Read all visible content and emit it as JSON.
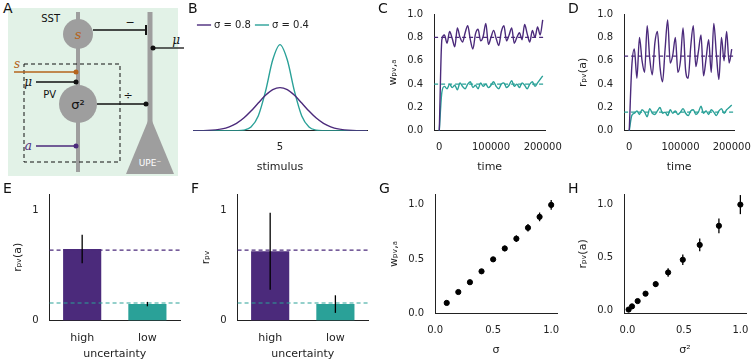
{
  "diagram": {
    "panel": "A",
    "nodes": [
      {
        "name": "SST",
        "content": "s",
        "color": "#b5651d"
      },
      {
        "name": "PV",
        "content": "σ²"
      },
      {
        "name": "UPE⁻"
      }
    ],
    "inputs": [
      {
        "label": "μ",
        "target": "UPE⁻",
        "color": "#111111"
      },
      {
        "label": "s",
        "target": "PV",
        "color": "#b5651d"
      },
      {
        "label": "μ",
        "target": "PV",
        "color": "#111111"
      },
      {
        "label": "a",
        "target": "PV",
        "color": "#4b2a7b"
      }
    ],
    "synapses": [
      {
        "from": "SST",
        "to": "UPE⁻",
        "label": "−"
      },
      {
        "from": "PV",
        "to": "UPE⁻",
        "label": "÷"
      }
    ]
  },
  "chart_data": [
    {
      "panel": "B",
      "type": "line",
      "xlabel": "stimulus",
      "grid": false,
      "legend": "upper left",
      "tick_labels": "x",
      "x": [
        2,
        2.5,
        3,
        3.25,
        3.5,
        3.75,
        4,
        4.25,
        4.5,
        4.75,
        5,
        5.25,
        5.5,
        5.75,
        6,
        6.25,
        6.5,
        6.75,
        7,
        7.5,
        8
      ],
      "xlim": [
        2,
        8
      ],
      "xticks": [
        5
      ],
      "ylim": [
        0,
        1.05
      ],
      "series": [
        {
          "name": "σ = 0.8",
          "color": "#4b2a7b",
          "values": [
            0.0004,
            0.0038,
            0.022,
            0.046,
            0.086,
            0.147,
            0.228,
            0.321,
            0.41,
            0.475,
            0.499,
            0.475,
            0.41,
            0.321,
            0.228,
            0.147,
            0.086,
            0.046,
            0.022,
            0.0038,
            0.0004
          ]
        },
        {
          "name": "σ = 0.4",
          "color": "#2aa198",
          "values": [
            0,
            0,
            0,
            0,
            0.0009,
            0.0076,
            0.044,
            0.172,
            0.456,
            0.821,
            0.997,
            0.821,
            0.456,
            0.172,
            0.044,
            0.0076,
            0.0009,
            0,
            0,
            0,
            0
          ]
        }
      ]
    },
    {
      "panel": "C",
      "type": "line",
      "xlabel": "time",
      "ylabel": "wₚᵥ,ₐ",
      "grid": false,
      "x": [
        0,
        5000,
        10000,
        15000,
        20000,
        25000,
        30000,
        35000,
        40000,
        45000,
        50000,
        55000,
        60000,
        65000,
        70000,
        75000,
        80000,
        85000,
        90000,
        95000,
        100000,
        105000,
        110000,
        115000,
        120000,
        125000,
        130000,
        135000,
        140000,
        145000,
        150000,
        155000,
        160000,
        165000,
        170000,
        175000,
        180000,
        185000,
        190000,
        195000,
        200000
      ],
      "xlim": [
        -10000,
        205000
      ],
      "xticks": [
        0,
        100000,
        200000
      ],
      "ylim": [
        0,
        1
      ],
      "yticks": [
        {
          "value": 0,
          "label": "0.0"
        },
        {
          "value": 0.2,
          "label": "0.2"
        },
        {
          "value": 0.4,
          "label": "0.4"
        },
        {
          "value": 0.6,
          "label": "0.6"
        },
        {
          "value": 0.8,
          "label": "0.8"
        },
        {
          "value": 1,
          "label": "1.0"
        }
      ],
      "series": [
        {
          "color": "#4b2a7b",
          "values": [
            0.0,
            0.78,
            0.82,
            0.75,
            0.85,
            0.79,
            0.72,
            0.88,
            0.8,
            0.76,
            0.84,
            0.9,
            0.78,
            0.7,
            0.83,
            0.87,
            0.77,
            0.81,
            0.92,
            0.74,
            0.8,
            0.86,
            0.79,
            0.73,
            0.85,
            0.9,
            0.77,
            0.82,
            0.88,
            0.75,
            0.8,
            0.84,
            0.78,
            0.91,
            0.83,
            0.76,
            0.86,
            0.8,
            0.89,
            0.82,
            0.95
          ]
        },
        {
          "color": "#2aa198",
          "values": [
            0,
            0.33,
            0.38,
            0.36,
            0.4,
            0.37,
            0.39,
            0.35,
            0.41,
            0.38,
            0.36,
            0.4,
            0.42,
            0.37,
            0.39,
            0.36,
            0.41,
            0.38,
            0.4,
            0.37,
            0.39,
            0.42,
            0.38,
            0.36,
            0.4,
            0.41,
            0.37,
            0.39,
            0.43,
            0.38,
            0.4,
            0.37,
            0.41,
            0.39,
            0.36,
            0.4,
            0.42,
            0.38,
            0.41,
            0.44,
            0.47
          ]
        }
      ],
      "reference_lines": [
        {
          "value": 0.8,
          "color": "#4b2a7b",
          "line_style": "dashed"
        },
        {
          "value": 0.4,
          "color": "#2aa198",
          "line_style": "dashed"
        }
      ]
    },
    {
      "panel": "D",
      "type": "line",
      "xlabel": "time",
      "ylabel": "rₚᵥ(a)",
      "grid": false,
      "x": [
        0,
        5000,
        10000,
        15000,
        20000,
        25000,
        30000,
        35000,
        40000,
        45000,
        50000,
        55000,
        60000,
        65000,
        70000,
        75000,
        80000,
        85000,
        90000,
        95000,
        100000,
        105000,
        110000,
        115000,
        120000,
        125000,
        130000,
        135000,
        140000,
        145000,
        150000,
        155000,
        160000,
        165000,
        170000,
        175000,
        180000,
        185000,
        190000,
        195000,
        200000
      ],
      "xlim": [
        -10000,
        205000
      ],
      "xticks": [
        0,
        100000,
        200000
      ],
      "ylim": [
        0,
        1
      ],
      "yticks": [
        {
          "value": 0,
          "label": "0.0"
        },
        {
          "value": 0.2,
          "label": "0.2"
        },
        {
          "value": 0.4,
          "label": "0.4"
        },
        {
          "value": 0.6,
          "label": "0.6"
        },
        {
          "value": 0.8,
          "label": "0.8"
        },
        {
          "value": 1,
          "label": "1.0"
        }
      ],
      "series": [
        {
          "color": "#4b2a7b",
          "values": [
            0,
            0.55,
            0.7,
            0.45,
            0.8,
            0.6,
            0.5,
            0.9,
            0.62,
            0.48,
            0.75,
            0.85,
            0.55,
            0.42,
            0.7,
            0.95,
            0.58,
            0.65,
            0.8,
            0.5,
            0.6,
            0.88,
            0.52,
            0.45,
            0.72,
            0.9,
            0.55,
            0.68,
            0.82,
            0.47,
            0.62,
            0.78,
            0.5,
            0.92,
            0.66,
            0.44,
            0.8,
            0.6,
            0.85,
            0.58,
            0.7
          ]
        },
        {
          "color": "#2aa198",
          "values": [
            0,
            0.13,
            0.15,
            0.17,
            0.14,
            0.18,
            0.16,
            0.12,
            0.19,
            0.15,
            0.14,
            0.17,
            0.2,
            0.15,
            0.16,
            0.13,
            0.18,
            0.15,
            0.17,
            0.14,
            0.16,
            0.19,
            0.15,
            0.13,
            0.17,
            0.18,
            0.14,
            0.16,
            0.21,
            0.15,
            0.17,
            0.14,
            0.18,
            0.16,
            0.13,
            0.17,
            0.19,
            0.15,
            0.18,
            0.2,
            0.22
          ]
        }
      ],
      "reference_lines": [
        {
          "value": 0.64,
          "color": "#4b2a7b",
          "line_style": "dashed"
        },
        {
          "value": 0.16,
          "color": "#2aa198",
          "line_style": "dashed"
        }
      ]
    },
    {
      "panel": "E",
      "type": "bar",
      "xlabel": "uncertainty",
      "ylabel": "rₚᵥ(a)",
      "grid": false,
      "categories": [
        "high",
        "low"
      ],
      "values": [
        0.65,
        0.15
      ],
      "errors": [
        0.13,
        0.02
      ],
      "colors": [
        "#4b2a7b",
        "#2aa198"
      ],
      "ylim": [
        0,
        1.15
      ],
      "yticks": [
        0,
        1
      ],
      "reference_lines": [
        {
          "value": 0.64,
          "color": "#4b2a7b",
          "line_style": "dashed"
        },
        {
          "value": 0.16,
          "color": "#2aa198",
          "line_style": "dashed"
        }
      ]
    },
    {
      "panel": "F",
      "type": "bar",
      "xlabel": "uncertainty",
      "ylabel": "rₚᵥ",
      "grid": false,
      "categories": [
        "high",
        "low"
      ],
      "values": [
        0.63,
        0.15
      ],
      "errors": [
        0.35,
        0.08
      ],
      "colors": [
        "#4b2a7b",
        "#2aa198"
      ],
      "ylim": [
        0,
        1.15
      ],
      "yticks": [
        0,
        1
      ],
      "reference_lines": [
        {
          "value": 0.64,
          "color": "#4b2a7b",
          "line_style": "dashed"
        },
        {
          "value": 0.16,
          "color": "#2aa198",
          "line_style": "dashed"
        }
      ]
    },
    {
      "panel": "G",
      "type": "scatter",
      "xlabel": "σ",
      "ylabel": "wₚᵥ,ₐ",
      "grid": false,
      "color": "#000000",
      "marker": "circle",
      "x": [
        0.1,
        0.2,
        0.3,
        0.4,
        0.5,
        0.6,
        0.7,
        0.8,
        0.9,
        1.0
      ],
      "values": [
        0.1,
        0.2,
        0.29,
        0.39,
        0.5,
        0.6,
        0.69,
        0.79,
        0.89,
        1.0
      ],
      "errors": [
        0.005,
        0.008,
        0.01,
        0.015,
        0.02,
        0.025,
        0.03,
        0.035,
        0.04,
        0.045
      ],
      "xlim": [
        0,
        1.05
      ],
      "xticks": [
        {
          "value": 0,
          "label": "0.0"
        },
        {
          "value": 0.5,
          "label": "0.5"
        },
        {
          "value": 1,
          "label": "1.0"
        }
      ],
      "ylim": [
        0,
        1.1
      ],
      "yticks": [
        {
          "value": 0,
          "label": "0.0"
        },
        {
          "value": 0.5,
          "label": "0.5"
        },
        {
          "value": 1,
          "label": "1.0"
        }
      ]
    },
    {
      "panel": "H",
      "type": "scatter",
      "xlabel": "σ²",
      "ylabel": "rₚᵥ(a)",
      "grid": false,
      "color": "#000000",
      "marker": "circle",
      "x": [
        0.01,
        0.04,
        0.09,
        0.16,
        0.25,
        0.36,
        0.49,
        0.64,
        0.81,
        1.0
      ],
      "values": [
        0.01,
        0.04,
        0.09,
        0.16,
        0.25,
        0.36,
        0.48,
        0.62,
        0.8,
        1.0
      ],
      "errors": [
        0.005,
        0.008,
        0.01,
        0.015,
        0.025,
        0.04,
        0.05,
        0.06,
        0.07,
        0.09
      ],
      "xlim": [
        -0.03,
        1.05
      ],
      "xticks": [
        {
          "value": 0,
          "label": "0.0"
        },
        {
          "value": 0.5,
          "label": "0.5"
        },
        {
          "value": 1,
          "label": "1.0"
        }
      ],
      "ylim": [
        -0.03,
        1.1
      ],
      "yticks": [
        {
          "value": 0,
          "label": "0.0"
        },
        {
          "value": 0.5,
          "label": "0.5"
        },
        {
          "value": 1,
          "label": "1.0"
        }
      ]
    }
  ]
}
